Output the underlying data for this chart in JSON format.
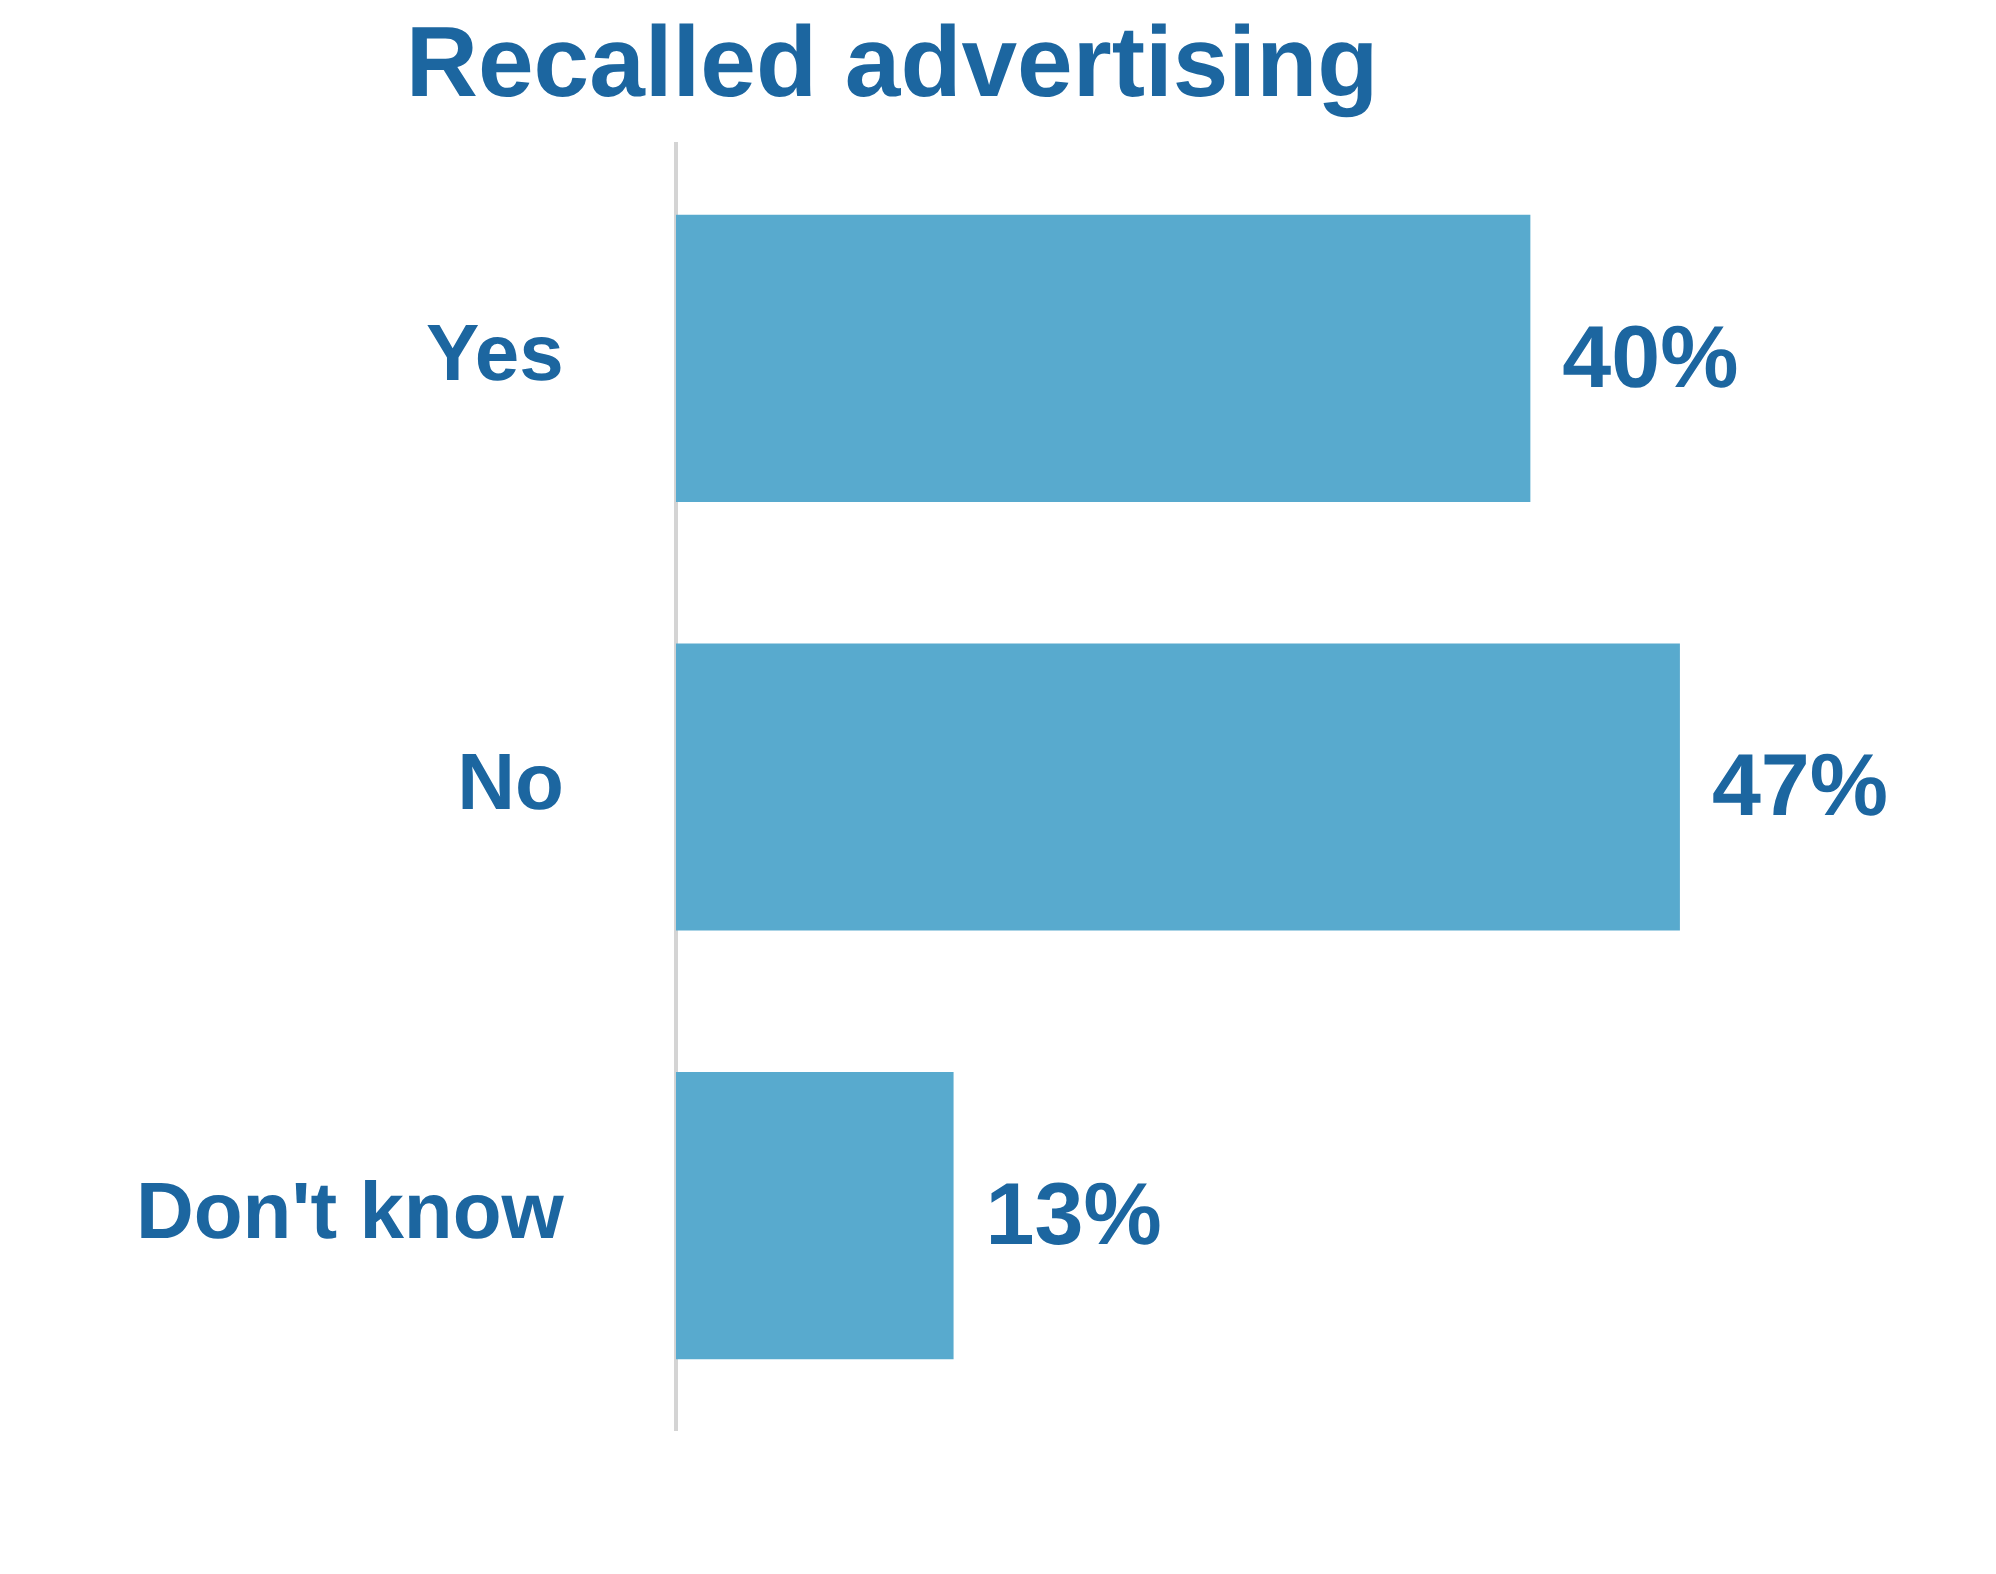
{
  "chart_data": {
    "type": "bar",
    "orientation": "horizontal",
    "title": "Recalled advertising",
    "categories": [
      "Yes",
      "No",
      "Don't know"
    ],
    "values": [
      40,
      47,
      13
    ],
    "value_labels": [
      "40%",
      "47%",
      "13%"
    ],
    "color": "#58aace"
  }
}
